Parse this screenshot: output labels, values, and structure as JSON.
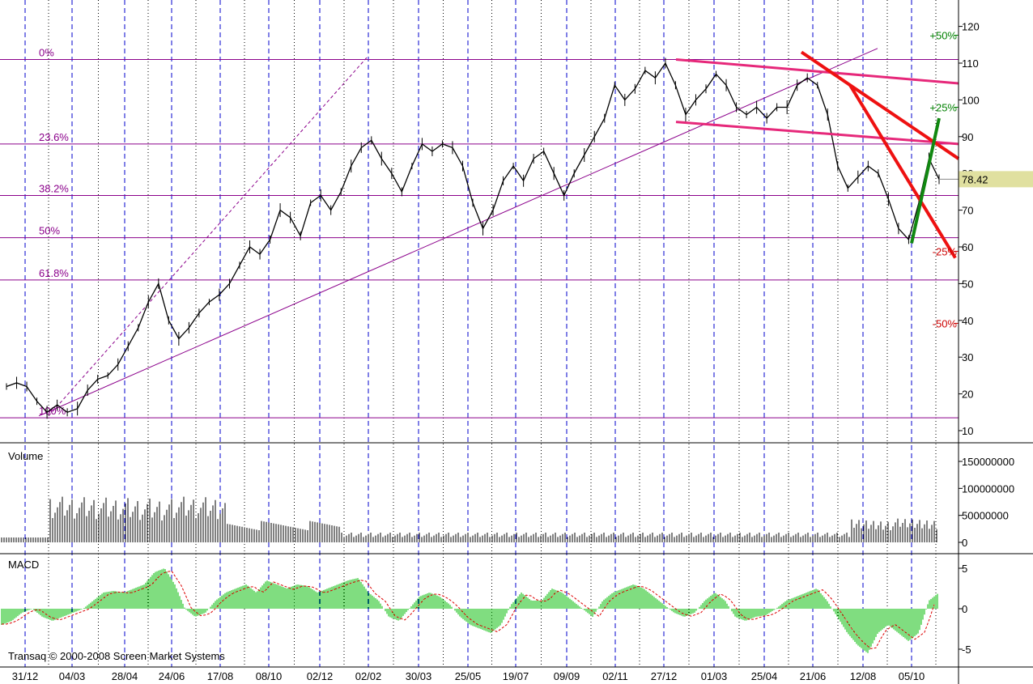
{
  "chart_data": {
    "type": "line",
    "description_free": true,
    "price_panel": {
      "yticks": [
        10,
        20,
        30,
        40,
        50,
        60,
        70,
        80,
        90,
        100,
        110,
        120
      ],
      "last_price_label": "78.42",
      "last_price": 78.42,
      "fib_levels": [
        {
          "label": "0%",
          "value": 111
        },
        {
          "label": "23.6%",
          "value": 88
        },
        {
          "label": "38.2%",
          "value": 74
        },
        {
          "label": "50%",
          "value": 62.5
        },
        {
          "label": "61.8%",
          "value": 51
        },
        {
          "label": "100%",
          "value": 13.5
        }
      ],
      "pct_markers": [
        {
          "label": "+50%",
          "value": 117.6,
          "color": "#008000"
        },
        {
          "label": "+25%",
          "value": 98,
          "color": "#008000"
        },
        {
          "label": "-25%",
          "value": 58.8,
          "color": "#cc0000"
        },
        {
          "label": "-50%",
          "value": 39.2,
          "color": "#cc0000"
        }
      ],
      "price_series": [
        {
          "i": 0,
          "v": 22
        },
        {
          "i": 1,
          "v": 23
        },
        {
          "i": 2,
          "v": 22
        },
        {
          "i": 3,
          "v": 18
        },
        {
          "i": 4,
          "v": 15
        },
        {
          "i": 5,
          "v": 17
        },
        {
          "i": 6,
          "v": 15
        },
        {
          "i": 7,
          "v": 16
        },
        {
          "i": 8,
          "v": 21
        },
        {
          "i": 9,
          "v": 24
        },
        {
          "i": 10,
          "v": 25
        },
        {
          "i": 11,
          "v": 28
        },
        {
          "i": 12,
          "v": 33
        },
        {
          "i": 13,
          "v": 38
        },
        {
          "i": 14,
          "v": 45
        },
        {
          "i": 15,
          "v": 50
        },
        {
          "i": 16,
          "v": 40
        },
        {
          "i": 17,
          "v": 35
        },
        {
          "i": 18,
          "v": 38
        },
        {
          "i": 19,
          "v": 42
        },
        {
          "i": 20,
          "v": 45
        },
        {
          "i": 21,
          "v": 47
        },
        {
          "i": 22,
          "v": 50
        },
        {
          "i": 23,
          "v": 55
        },
        {
          "i": 24,
          "v": 60
        },
        {
          "i": 25,
          "v": 58
        },
        {
          "i": 26,
          "v": 62
        },
        {
          "i": 27,
          "v": 70
        },
        {
          "i": 28,
          "v": 68
        },
        {
          "i": 29,
          "v": 63
        },
        {
          "i": 30,
          "v": 72
        },
        {
          "i": 31,
          "v": 74
        },
        {
          "i": 32,
          "v": 70
        },
        {
          "i": 33,
          "v": 75
        },
        {
          "i": 34,
          "v": 82
        },
        {
          "i": 35,
          "v": 87
        },
        {
          "i": 36,
          "v": 89
        },
        {
          "i": 37,
          "v": 84
        },
        {
          "i": 38,
          "v": 80
        },
        {
          "i": 39,
          "v": 75
        },
        {
          "i": 40,
          "v": 82
        },
        {
          "i": 41,
          "v": 88
        },
        {
          "i": 42,
          "v": 86
        },
        {
          "i": 43,
          "v": 88
        },
        {
          "i": 44,
          "v": 87
        },
        {
          "i": 45,
          "v": 82
        },
        {
          "i": 46,
          "v": 72
        },
        {
          "i": 47,
          "v": 65
        },
        {
          "i": 48,
          "v": 70
        },
        {
          "i": 49,
          "v": 78
        },
        {
          "i": 50,
          "v": 82
        },
        {
          "i": 51,
          "v": 78
        },
        {
          "i": 52,
          "v": 84
        },
        {
          "i": 53,
          "v": 86
        },
        {
          "i": 54,
          "v": 80
        },
        {
          "i": 55,
          "v": 74
        },
        {
          "i": 56,
          "v": 80
        },
        {
          "i": 57,
          "v": 85
        },
        {
          "i": 58,
          "v": 90
        },
        {
          "i": 59,
          "v": 95
        },
        {
          "i": 60,
          "v": 104
        },
        {
          "i": 61,
          "v": 100
        },
        {
          "i": 62,
          "v": 103
        },
        {
          "i": 63,
          "v": 108
        },
        {
          "i": 64,
          "v": 106
        },
        {
          "i": 65,
          "v": 110
        },
        {
          "i": 66,
          "v": 104
        },
        {
          "i": 67,
          "v": 96
        },
        {
          "i": 68,
          "v": 100
        },
        {
          "i": 69,
          "v": 103
        },
        {
          "i": 70,
          "v": 107
        },
        {
          "i": 71,
          "v": 104
        },
        {
          "i": 72,
          "v": 98
        },
        {
          "i": 73,
          "v": 96
        },
        {
          "i": 74,
          "v": 98
        },
        {
          "i": 75,
          "v": 95
        },
        {
          "i": 76,
          "v": 98
        },
        {
          "i": 77,
          "v": 98
        },
        {
          "i": 78,
          "v": 104
        },
        {
          "i": 79,
          "v": 106
        },
        {
          "i": 80,
          "v": 104
        },
        {
          "i": 81,
          "v": 96
        },
        {
          "i": 82,
          "v": 82
        },
        {
          "i": 83,
          "v": 76
        },
        {
          "i": 84,
          "v": 79
        },
        {
          "i": 85,
          "v": 82
        },
        {
          "i": 86,
          "v": 80
        },
        {
          "i": 87,
          "v": 73
        },
        {
          "i": 88,
          "v": 65
        },
        {
          "i": 89,
          "v": 62
        },
        {
          "i": 90,
          "v": 72
        },
        {
          "i": 91,
          "v": 84
        },
        {
          "i": 92,
          "v": 78.4
        }
      ]
    },
    "volume_panel": {
      "title": "Volume",
      "yticks": [
        0,
        50000000,
        100000000,
        150000000
      ],
      "ytick_labels": [
        "0",
        "50000000",
        "100000000",
        "150000000"
      ]
    },
    "macd_panel": {
      "title": "MACD",
      "yticks": [
        -5,
        0,
        5
      ],
      "ytick_labels": [
        "-5",
        "0",
        "5"
      ],
      "values": [
        -2,
        -1.5,
        -0.5,
        0,
        -1,
        -1.5,
        -1,
        -0.5,
        0,
        1,
        2,
        2.2,
        2,
        2.5,
        3,
        4.5,
        5,
        3,
        0,
        -1,
        -0.5,
        1,
        2,
        2.5,
        3,
        2,
        3.5,
        3,
        2.5,
        3,
        2.8,
        2,
        2.5,
        3,
        3.5,
        3.8,
        2,
        1,
        -1,
        -1.5,
        0,
        1.5,
        2,
        1.5,
        0.5,
        -1,
        -2,
        -2.5,
        -3,
        -2,
        0.5,
        2,
        1,
        1,
        2.5,
        2,
        1,
        0,
        -1,
        1,
        2,
        2.5,
        3,
        2.5,
        1.5,
        0.5,
        -0.5,
        -1,
        -0.5,
        1,
        2,
        1,
        -1,
        -1.5,
        -1,
        -0.8,
        0,
        1,
        1.5,
        2,
        2.5,
        1,
        -1,
        -3,
        -4.5,
        -5.5,
        -3,
        -2,
        -3,
        -4,
        -3,
        1,
        2
      ]
    },
    "x_tick_labels": [
      "31/12",
      "04/03",
      "28/04",
      "24/06",
      "17/08",
      "08/10",
      "02/12",
      "02/02",
      "30/03",
      "25/05",
      "19/07",
      "09/09",
      "02/11",
      "27/12",
      "01/03",
      "25/04",
      "21/06",
      "12/08",
      "05/10"
    ],
    "colors": {
      "fib": "#8b008b",
      "channel": "#e6287a",
      "downtrend": "#ee1111",
      "uptrend": "#118811",
      "grid_blue": "#0000cc",
      "macd_bar": "#00bb00",
      "macd_signal": "#dd0000",
      "last_price_bg": "#e0e0a0"
    }
  },
  "copyright": "Transaq © 2000-2008 Screen Market Systems"
}
